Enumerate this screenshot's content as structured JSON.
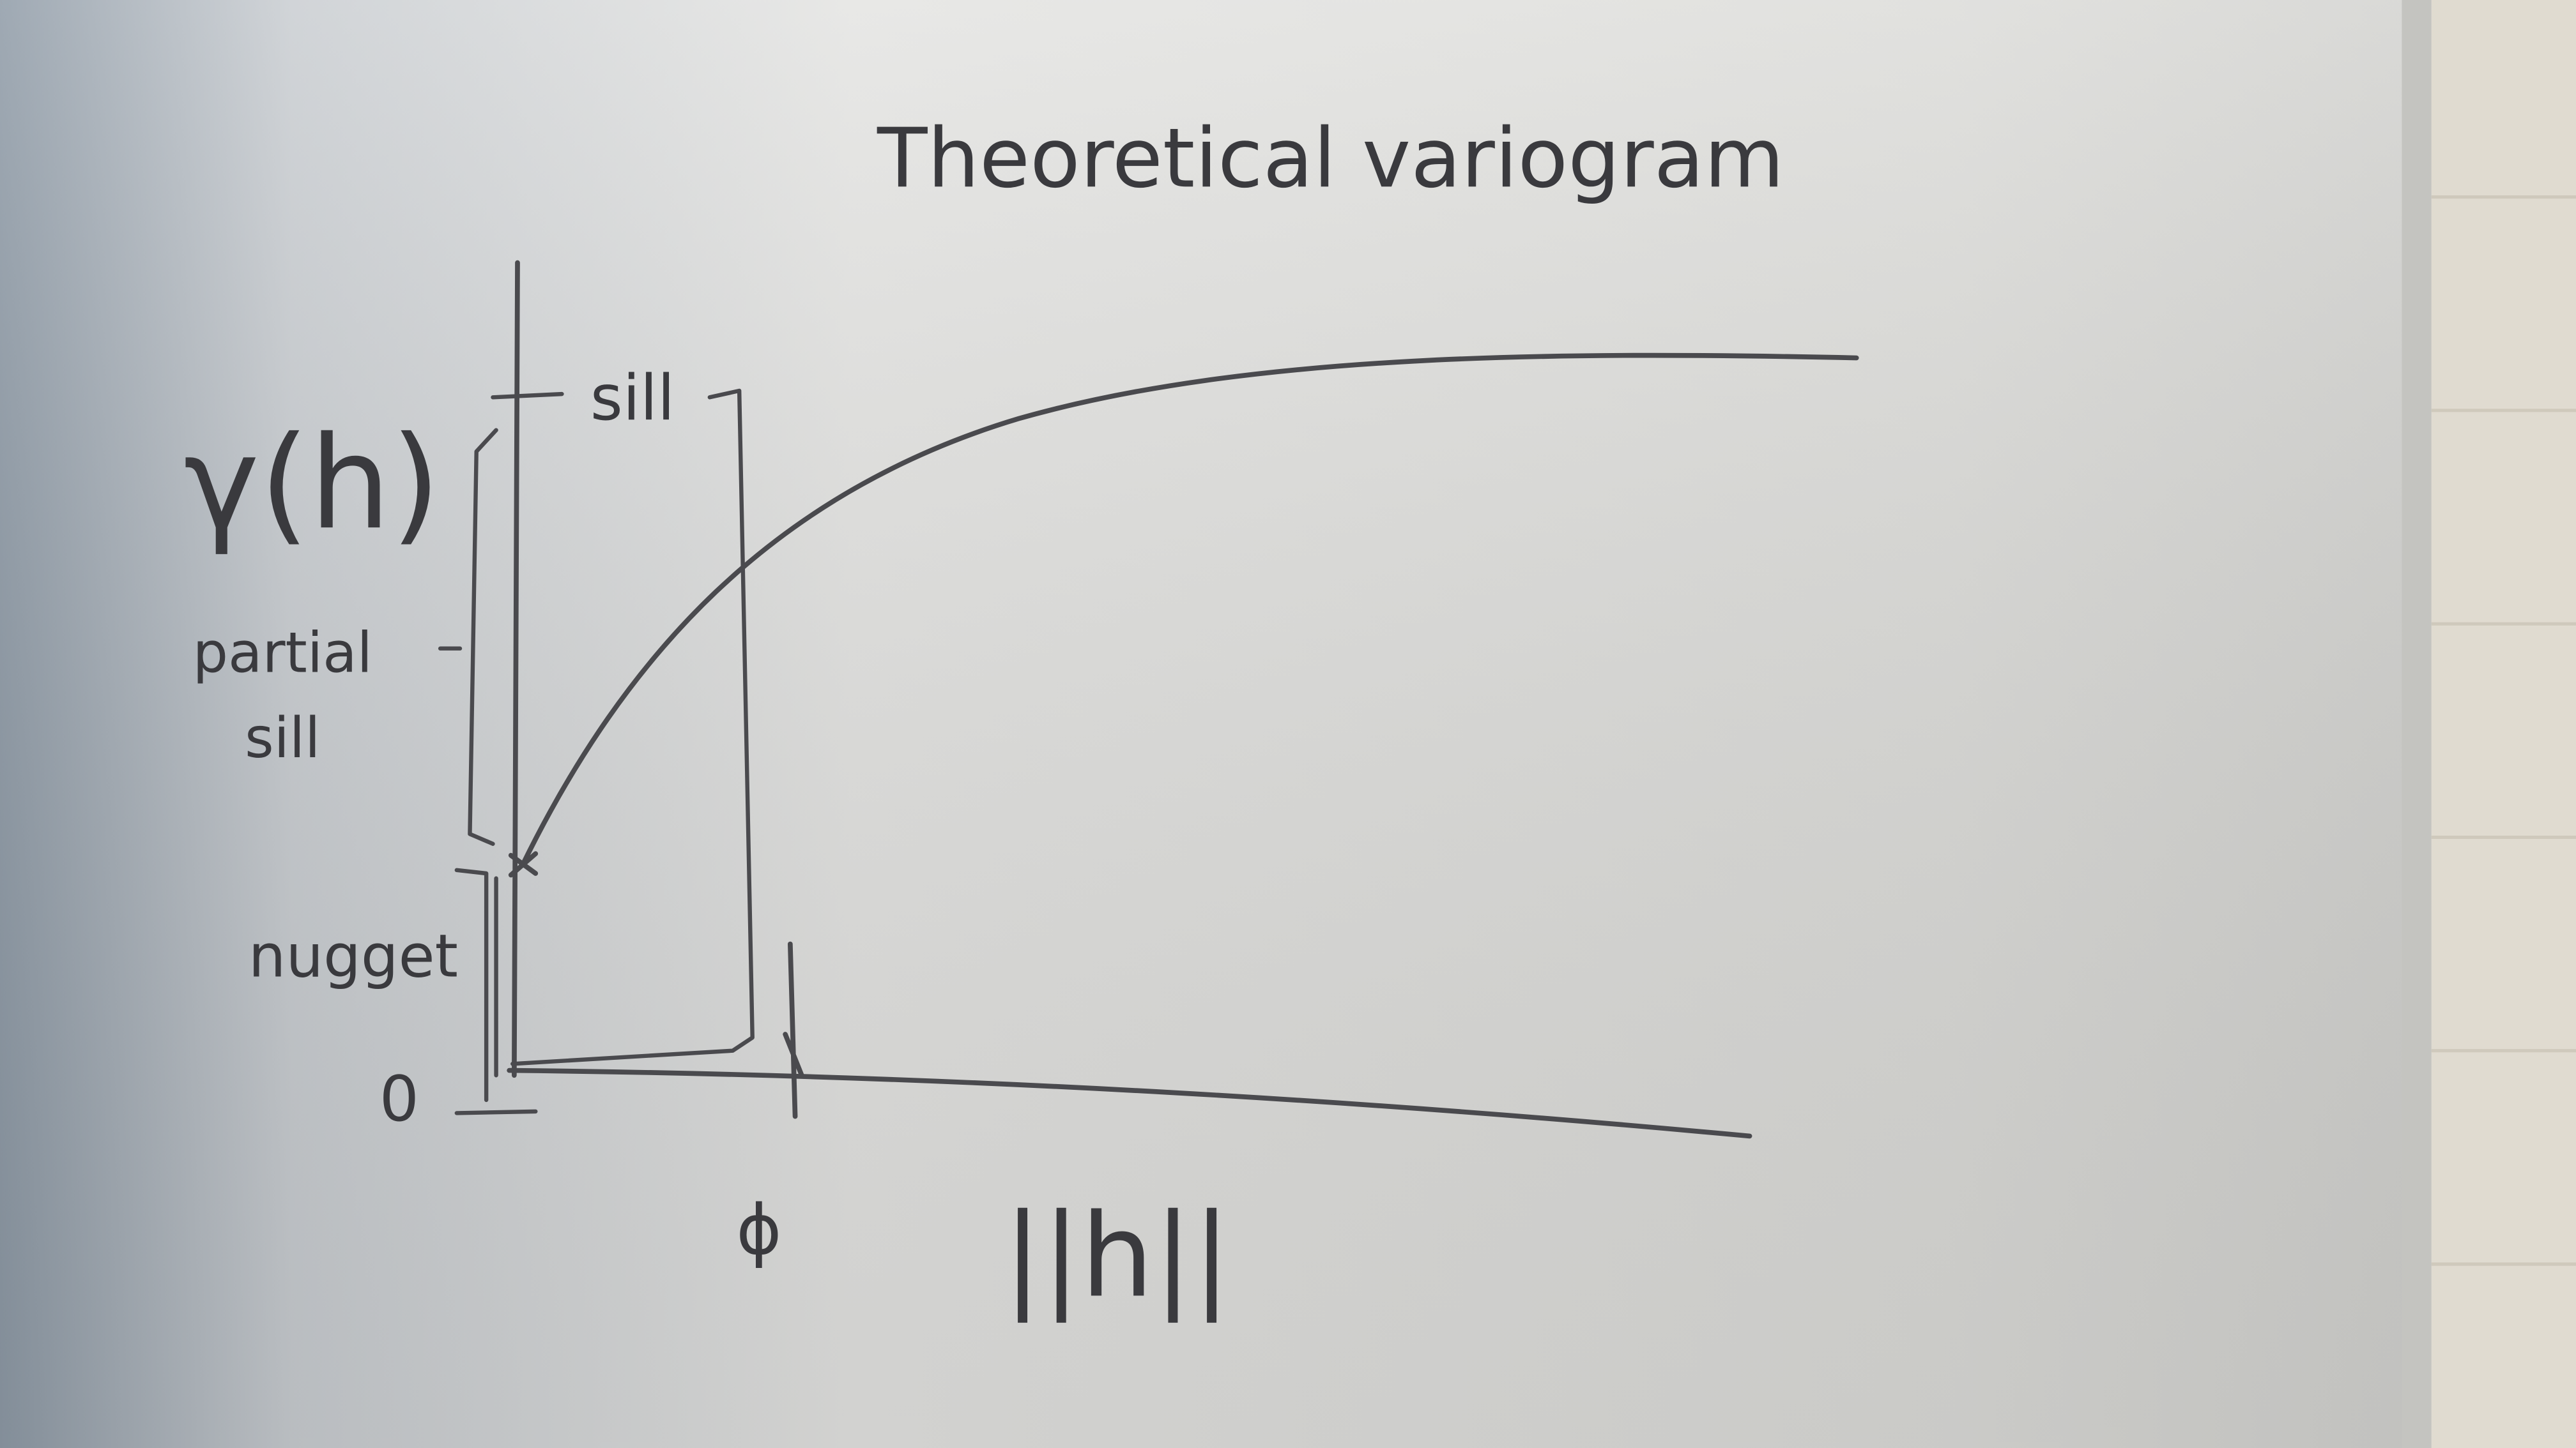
{
  "title": "Theoretical variogram",
  "y_axis_label": "γ(h)",
  "x_axis_label": "||h||",
  "labels": {
    "sill": "sill",
    "partial_sill": [
      "partial",
      "sill"
    ],
    "nugget": "nugget",
    "origin": "0",
    "range": "ϕ"
  }
}
